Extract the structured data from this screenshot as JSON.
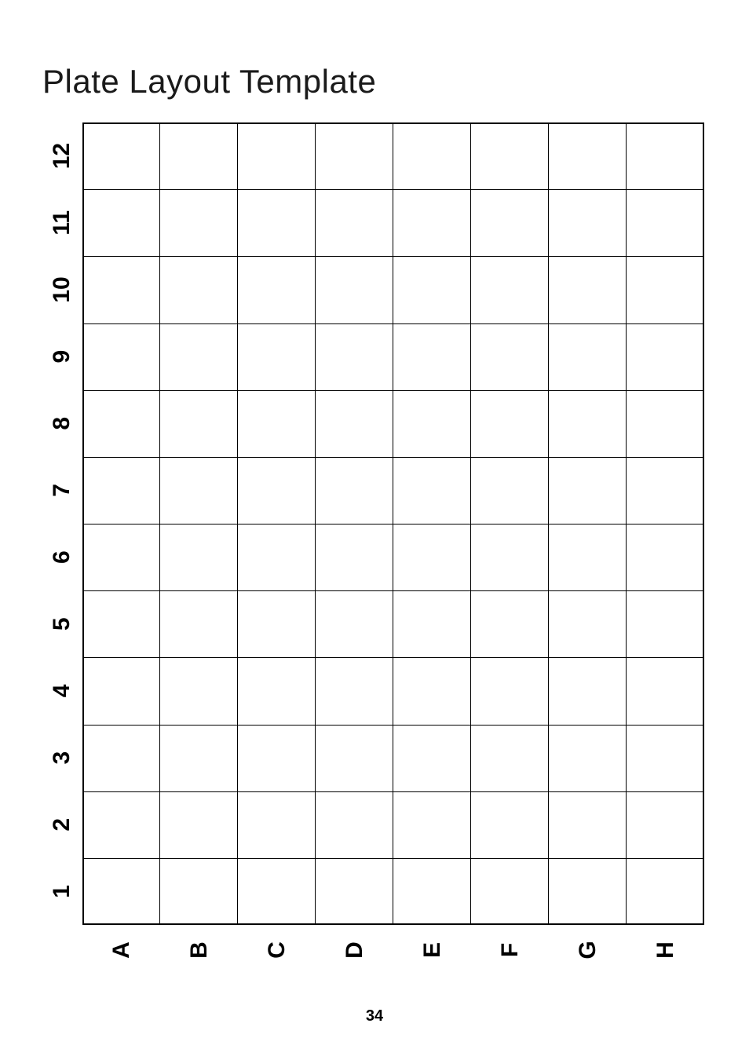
{
  "title": "Plate Layout Template",
  "page_number": "34",
  "plate": {
    "type": "table",
    "columns": [
      "1",
      "2",
      "3",
      "4",
      "5",
      "6",
      "7",
      "8",
      "9",
      "10",
      "11",
      "12"
    ],
    "rows": [
      "A",
      "B",
      "C",
      "D",
      "E",
      "F",
      "G",
      "H"
    ],
    "border_color": "#000000",
    "background_color": "#ffffff",
    "label_fontsize": 30,
    "label_fontweight": 900
  }
}
